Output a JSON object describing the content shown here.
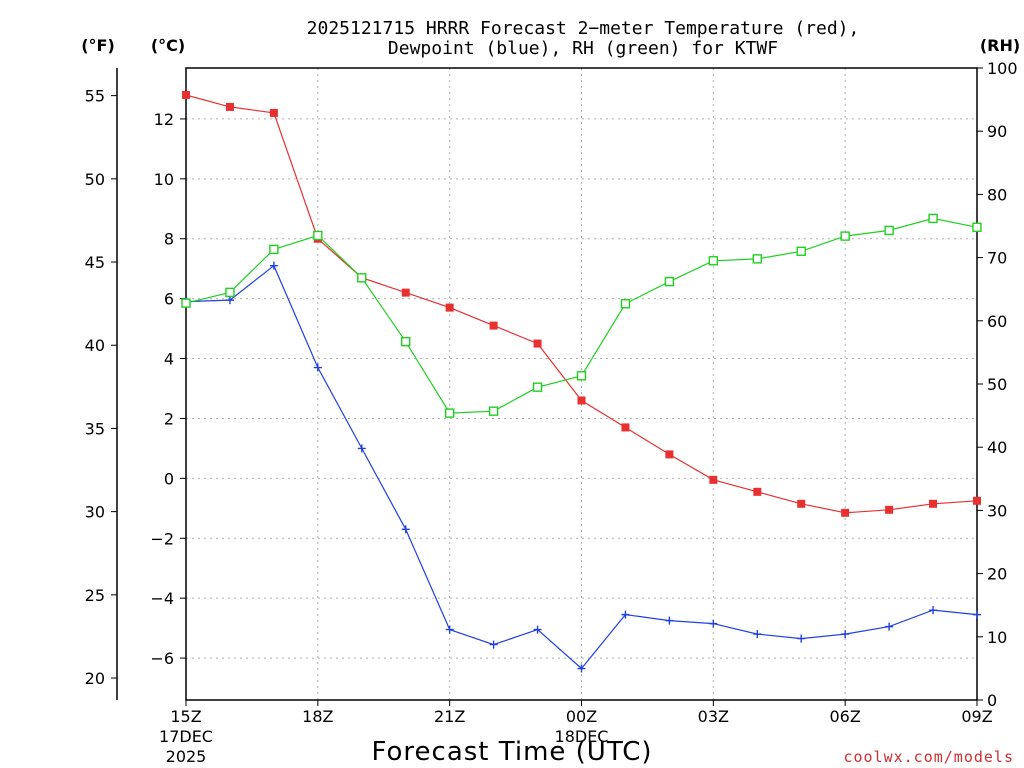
{
  "chart_data": {
    "type": "line",
    "title": {
      "line1": "2025121715 HRRR Forecast 2−meter Temperature (red),",
      "line2": "Dewpoint (blue), RH (green) for KTWF"
    },
    "xlabel": "Forecast Time (UTC)",
    "credit": "coolwx.com/models",
    "units": {
      "fahrenheit": "(°F)",
      "celsius": "(°C)",
      "rh": "(RH)"
    },
    "x_hours": [
      15,
      16,
      17,
      18,
      19,
      20,
      21,
      22,
      23,
      24,
      25,
      26,
      27,
      28,
      29,
      30,
      31,
      32,
      33
    ],
    "x_ticks": [
      {
        "hour": 15,
        "label": "15Z",
        "sub1": "17DEC",
        "sub2": "2025"
      },
      {
        "hour": 18,
        "label": "18Z"
      },
      {
        "hour": 21,
        "label": "21Z"
      },
      {
        "hour": 24,
        "label": "00Z",
        "sub1": "18DEC"
      },
      {
        "hour": 27,
        "label": "03Z"
      },
      {
        "hour": 30,
        "label": "06Z"
      },
      {
        "hour": 33,
        "label": "09Z"
      }
    ],
    "celsius_axis": {
      "range": [
        -7.4,
        13.7
      ],
      "ticks": [
        12,
        10,
        8,
        6,
        4,
        2,
        0,
        -2,
        -4,
        -6
      ]
    },
    "fahrenheit_axis": {
      "ticks": [
        55,
        50,
        45,
        40,
        35,
        30,
        25,
        20
      ]
    },
    "rh_axis": {
      "range": [
        0,
        100
      ],
      "ticks": [
        100,
        90,
        80,
        70,
        60,
        50,
        40,
        30,
        20,
        10,
        0
      ]
    },
    "grid": true,
    "series": [
      {
        "name": "Temperature (red)",
        "axis": "celsius",
        "color": "#e83030",
        "marker": "filled-square",
        "values": [
          12.8,
          12.4,
          12.2,
          8.0,
          6.7,
          6.2,
          5.7,
          5.1,
          4.5,
          2.6,
          1.7,
          0.8,
          -0.05,
          -0.45,
          -0.85,
          -1.15,
          -1.05,
          -0.85,
          -0.75
        ]
      },
      {
        "name": "Dewpoint (blue)",
        "axis": "celsius",
        "color": "#2040e0",
        "marker": "plus",
        "values": [
          5.9,
          5.95,
          7.1,
          3.7,
          1.0,
          -1.7,
          -5.05,
          -5.55,
          -5.05,
          -6.35,
          -4.55,
          -4.75,
          -4.85,
          -5.2,
          -5.35,
          -5.2,
          -4.95,
          -4.4,
          -4.55
        ]
      },
      {
        "name": "RH (green)",
        "axis": "rh",
        "color": "#20d020",
        "marker": "open-square",
        "values": [
          62.8,
          64.5,
          71.3,
          73.5,
          66.8,
          56.7,
          45.4,
          45.7,
          49.5,
          51.3,
          62.7,
          66.2,
          69.5,
          69.8,
          71.0,
          73.4,
          74.3,
          76.2,
          74.8
        ]
      }
    ]
  }
}
